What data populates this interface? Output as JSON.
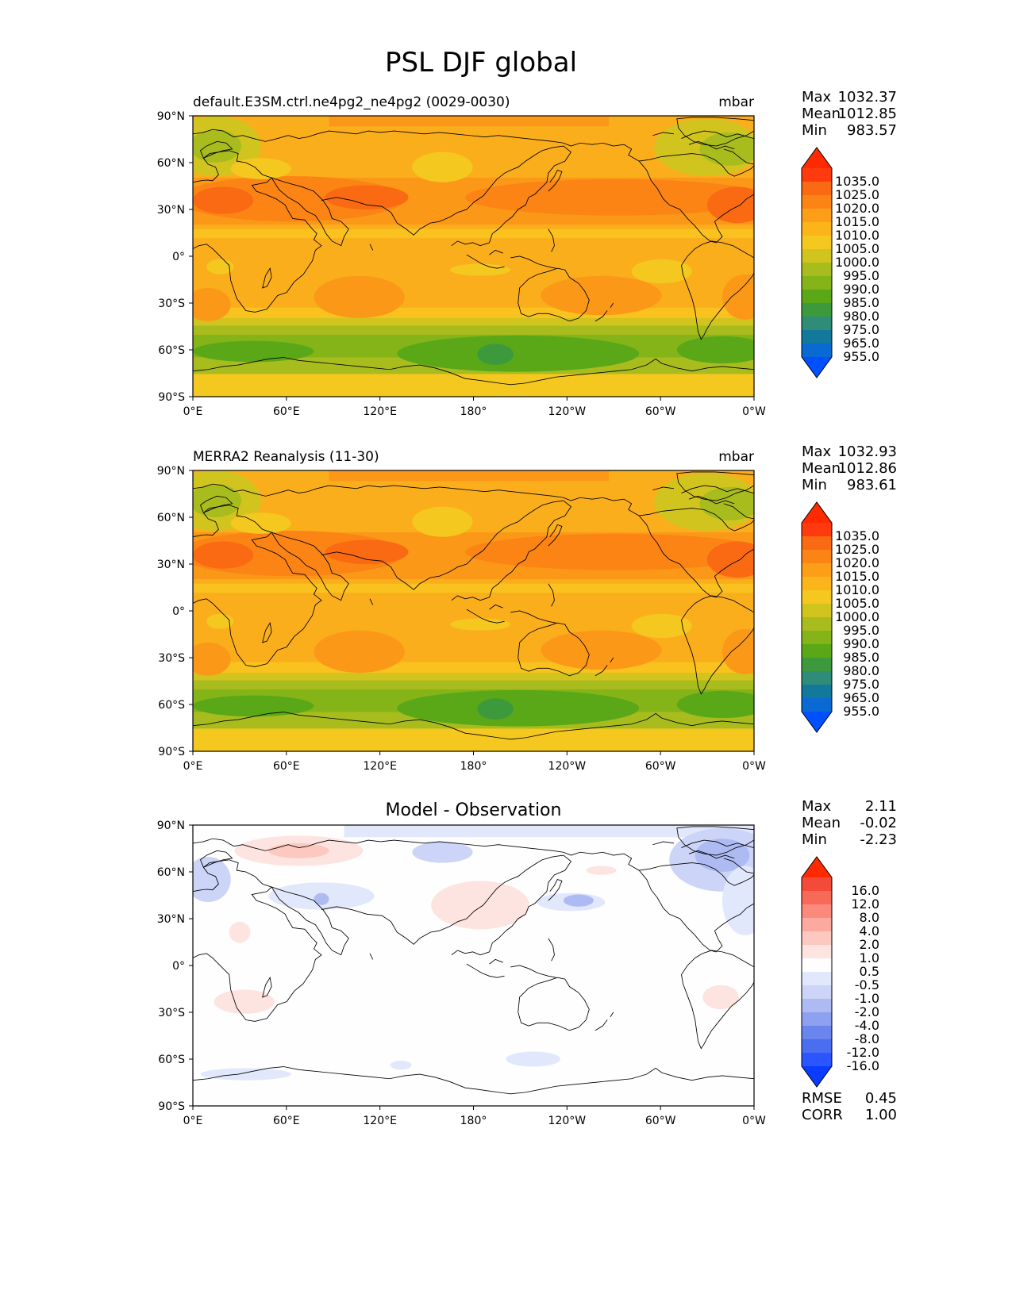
{
  "title": "PSL DJF global",
  "lon_ticks": [
    "0°E",
    "60°E",
    "120°E",
    "180°",
    "120°W",
    "60°W",
    "0°W"
  ],
  "lat_ticks": [
    "90°N",
    "60°N",
    "30°N",
    "0°",
    "30°S",
    "60°S",
    "90°S"
  ],
  "panels": [
    {
      "id": "test",
      "left_title": "default.E3SM.ctrl.ne4pg2_ne4pg2 (0029-0030)",
      "center_title": "",
      "right_title": "mbar",
      "stats": [
        {
          "label": "Max",
          "value": "1032.37"
        },
        {
          "label": "Mean",
          "value": "1012.85"
        },
        {
          "label": "Min",
          "value": "983.57"
        }
      ],
      "colorbar": {
        "colors": [
          "#0050ff",
          "#0a6ad4",
          "#12789c",
          "#2e8c78",
          "#3c9a3c",
          "#5aa818",
          "#84b418",
          "#a8bc1e",
          "#d2c41e",
          "#f4c81e",
          "#fbb41a",
          "#fc9e18",
          "#fb8414",
          "#f96a12",
          "#ff3a0e",
          "#ff2a00"
        ],
        "labels": [
          "1035.0",
          "1025.0",
          "1020.0",
          "1015.0",
          "1010.0",
          "1005.0",
          "1000.0",
          "995.0",
          "990.0",
          "985.0",
          "980.0",
          "975.0",
          "965.0",
          "955.0"
        ]
      }
    },
    {
      "id": "reference",
      "left_title": "MERRA2 Reanalysis (11-30)",
      "center_title": "",
      "right_title": "mbar",
      "stats": [
        {
          "label": "Max",
          "value": "1032.93"
        },
        {
          "label": "Mean",
          "value": "1012.86"
        },
        {
          "label": "Min",
          "value": "983.61"
        }
      ],
      "colorbar": {
        "colors": [
          "#0050ff",
          "#0a6ad4",
          "#12789c",
          "#2e8c78",
          "#3c9a3c",
          "#5aa818",
          "#84b418",
          "#a8bc1e",
          "#d2c41e",
          "#f4c81e",
          "#fbb41a",
          "#fc9e18",
          "#fb8414",
          "#f96a12",
          "#ff3a0e",
          "#ff2a00"
        ],
        "labels": [
          "1035.0",
          "1025.0",
          "1020.0",
          "1015.0",
          "1010.0",
          "1005.0",
          "1000.0",
          "995.0",
          "990.0",
          "985.0",
          "980.0",
          "975.0",
          "965.0",
          "955.0"
        ]
      }
    },
    {
      "id": "diff",
      "left_title": "",
      "center_title": "Model - Observation",
      "right_title": "",
      "stats": [
        {
          "label": "Max",
          "value": "2.11"
        },
        {
          "label": "Mean",
          "value": "-0.02"
        },
        {
          "label": "Min",
          "value": "-2.23"
        }
      ],
      "colorbar": {
        "colors": [
          "#0a3cff",
          "#2a55ff",
          "#4a6ef0",
          "#6a86ee",
          "#8ea0f0",
          "#aebaf2",
          "#ccd4f8",
          "#e2e8fc",
          "#fefefe",
          "#fde4e0",
          "#fcc8c0",
          "#fcaaa0",
          "#fb8a7c",
          "#f86a58",
          "#f44a3a",
          "#ff2a00"
        ],
        "labels": [
          "16.0",
          "12.0",
          "8.0",
          "4.0",
          "2.0",
          "1.0",
          "0.5",
          "-0.5",
          "-1.0",
          "-2.0",
          "-4.0",
          "-8.0",
          "-12.0",
          "-16.0"
        ]
      },
      "metrics": [
        {
          "label": "RMSE",
          "value": "0.45"
        },
        {
          "label": "CORR",
          "value": "1.00"
        }
      ]
    }
  ],
  "colors": {
    "field_base": "#fbae1c",
    "diff_base": "#fefefe",
    "coastline": "#000000"
  }
}
